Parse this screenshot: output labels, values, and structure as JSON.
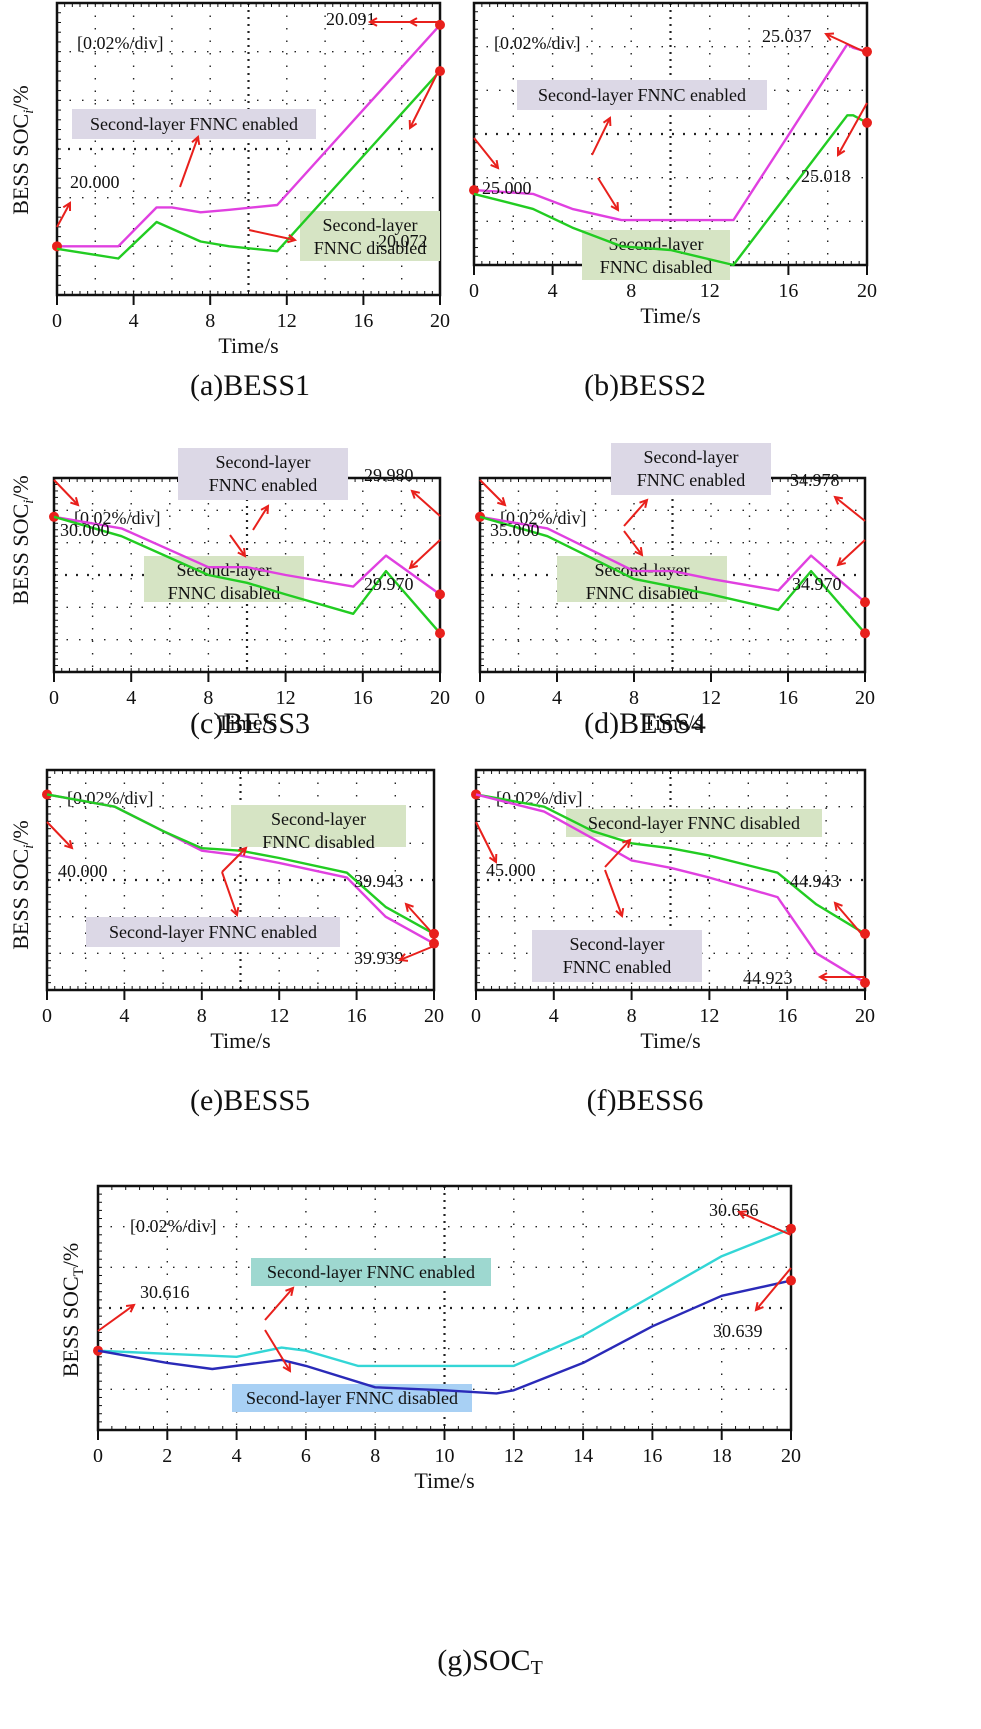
{
  "figure": {
    "colors": {
      "enabled_line": "#e040e0",
      "disabled_line": "#22cc22",
      "total_enabled_line": "#33d6d6",
      "total_disabled_line": "#2a2ab8",
      "enabled_box": "#dcd8e6",
      "disabled_box": "#d6e4c4",
      "total_enabled_box": "#9ed8d0",
      "total_disabled_box": "#a8d0f4",
      "arrow": "#e8201c",
      "marker": "#e8201c"
    }
  },
  "chart_data": [
    {
      "id": "a",
      "type": "line",
      "caption": "(a)BESS1",
      "xlabel": "Time/s",
      "ylabel": "BESS SOC",
      "ylabel_sub": "i",
      "ylabel_suffix": "/%",
      "scale_note": "[0.02%/div]",
      "x_ticks": [
        "0",
        "4",
        "8",
        "12",
        "16",
        "20"
      ],
      "xlim": [
        0,
        20
      ],
      "ylim": [
        19.98,
        20.1
      ],
      "grid": true,
      "series": [
        {
          "name": "Second-layer FNNC enabled",
          "color_key": "enabled_line",
          "x": [
            0,
            3.2,
            5.2,
            6,
            7.5,
            9,
            11.5,
            20
          ],
          "y": [
            20.0,
            20.0,
            20.016,
            20.016,
            20.014,
            20.015,
            20.017,
            20.091
          ]
        },
        {
          "name": "Second-layer FNNC disabled",
          "color_key": "disabled_line",
          "x": [
            0,
            3.2,
            5.2,
            7.5,
            9,
            11.5,
            20
          ],
          "y": [
            19.999,
            19.995,
            20.01,
            20.002,
            20.0,
            19.998,
            20.072
          ]
        }
      ],
      "annotations": [
        {
          "text": "20.000",
          "value": 20.0
        },
        {
          "text": "20.091",
          "value": 20.091
        },
        {
          "text": "20.072",
          "value": 20.072
        }
      ],
      "labels": [
        {
          "text": "Second-layer FNNC enabled",
          "style": "enabled_box"
        },
        {
          "text": "Second-layer|FNNC disabled",
          "style": "disabled_box"
        }
      ]
    },
    {
      "id": "b",
      "type": "line",
      "caption": "(b)BESS2",
      "xlabel": "Time/s",
      "ylabel": "",
      "scale_note": "[0.02%/div]",
      "x_ticks": [
        "0",
        "4",
        "8",
        "12",
        "16",
        "20"
      ],
      "xlim": [
        0,
        20
      ],
      "ylim": [
        24.98,
        25.05
      ],
      "grid": true,
      "series": [
        {
          "name": "Second-layer FNNC enabled",
          "color_key": "enabled_line",
          "x": [
            0,
            3,
            5,
            7.5,
            10,
            13.2,
            19,
            19.3,
            20
          ],
          "y": [
            25.0,
            24.999,
            24.995,
            24.992,
            24.992,
            24.992,
            25.039,
            25.038,
            25.037
          ]
        },
        {
          "name": "Second-layer FNNC disabled",
          "color_key": "disabled_line",
          "x": [
            0,
            3,
            5,
            7.5,
            10,
            13.2,
            19,
            19.3,
            20
          ],
          "y": [
            24.999,
            24.995,
            24.99,
            24.985,
            24.984,
            24.98,
            25.02,
            25.02,
            25.018
          ]
        }
      ],
      "annotations": [
        {
          "text": "25.000",
          "value": 25.0
        },
        {
          "text": "25.037",
          "value": 25.037
        },
        {
          "text": "25.018",
          "value": 25.018
        }
      ],
      "labels": [
        {
          "text": "Second-layer FNNC enabled",
          "style": "enabled_box"
        },
        {
          "text": "Second-layer|FNNC disabled",
          "style": "disabled_box"
        }
      ]
    },
    {
      "id": "c",
      "type": "line",
      "caption": "(c)BESS3",
      "xlabel": "Time/s",
      "ylabel": "BESS SOC",
      "ylabel_sub": "i",
      "ylabel_suffix": "/%",
      "scale_note": "[0.02%/div]",
      "x_ticks": [
        "0",
        "4",
        "8",
        "12",
        "16",
        "20"
      ],
      "xlim": [
        0,
        20
      ],
      "ylim": [
        29.96,
        30.01
      ],
      "grid": true,
      "series": [
        {
          "name": "Second-layer FNNC enabled",
          "color_key": "enabled_line",
          "x": [
            0,
            3.5,
            8,
            10,
            12,
            15.5,
            17.2,
            20
          ],
          "y": [
            30.0,
            29.997,
            29.987,
            29.987,
            29.985,
            29.982,
            29.99,
            29.98
          ]
        },
        {
          "name": "Second-layer FNNC disabled",
          "color_key": "disabled_line",
          "x": [
            0,
            3.5,
            8,
            10,
            12,
            15.5,
            17.2,
            20
          ],
          "y": [
            30.0,
            29.995,
            29.985,
            29.983,
            29.98,
            29.975,
            29.986,
            29.97
          ]
        }
      ],
      "annotations": [
        {
          "text": "30.000",
          "value": 30.0
        },
        {
          "text": "29.980",
          "value": 29.98
        },
        {
          "text": "29.970",
          "value": 29.97
        }
      ],
      "labels": [
        {
          "text": "Second-layer|FNNC enabled",
          "style": "enabled_box"
        },
        {
          "text": "Second-layer|FNNC disabled",
          "style": "disabled_box"
        }
      ]
    },
    {
      "id": "d",
      "type": "line",
      "caption": "(d)BESS4",
      "xlabel": "Time/s",
      "ylabel": "",
      "scale_note": "[0.02%/div]",
      "x_ticks": [
        "0",
        "4",
        "8",
        "12",
        "16",
        "20"
      ],
      "xlim": [
        0,
        20
      ],
      "ylim": [
        34.96,
        35.01
      ],
      "grid": true,
      "series": [
        {
          "name": "Second-layer FNNC enabled",
          "color_key": "enabled_line",
          "x": [
            0,
            3.5,
            8,
            10,
            12,
            15.5,
            17.2,
            20
          ],
          "y": [
            35.0,
            34.997,
            34.986,
            34.986,
            34.984,
            34.981,
            34.99,
            34.978
          ]
        },
        {
          "name": "Second-layer FNNC disabled",
          "color_key": "disabled_line",
          "x": [
            0,
            3.5,
            8,
            10,
            12,
            15.5,
            17.2,
            20
          ],
          "y": [
            35.0,
            34.995,
            34.984,
            34.982,
            34.98,
            34.976,
            34.986,
            34.97
          ]
        }
      ],
      "annotations": [
        {
          "text": "35.000",
          "value": 35.0
        },
        {
          "text": "34.978",
          "value": 34.978
        },
        {
          "text": "34.970",
          "value": 34.97
        }
      ],
      "labels": [
        {
          "text": "Second-layer|FNNC enabled",
          "style": "enabled_box"
        },
        {
          "text": "Second-layer|FNNC disabled",
          "style": "disabled_box"
        }
      ]
    },
    {
      "id": "e",
      "type": "line",
      "caption": "(e)BESS5",
      "xlabel": "Time/s",
      "ylabel": "BESS SOC",
      "ylabel_sub": "i",
      "ylabel_suffix": "/%",
      "scale_note": "[0.02%/div]",
      "x_ticks": [
        "0",
        "4",
        "8",
        "12",
        "16",
        "20"
      ],
      "xlim": [
        0,
        20
      ],
      "ylim": [
        39.92,
        40.01
      ],
      "grid": true,
      "series": [
        {
          "name": "Second-layer FNNC enabled",
          "color_key": "enabled_line",
          "x": [
            0,
            3.5,
            6,
            8,
            10,
            12,
            15.5,
            17.5,
            20
          ],
          "y": [
            40.0,
            39.995,
            39.985,
            39.977,
            39.975,
            39.972,
            39.966,
            39.95,
            39.939
          ]
        },
        {
          "name": "Second-layer FNNC disabled",
          "color_key": "disabled_line",
          "x": [
            0,
            3.5,
            6,
            8,
            10,
            12,
            15.5,
            17.5,
            20
          ],
          "y": [
            40.0,
            39.995,
            39.985,
            39.978,
            39.977,
            39.974,
            39.968,
            39.954,
            39.943
          ]
        }
      ],
      "annotations": [
        {
          "text": "40.000",
          "value": 40.0
        },
        {
          "text": "39.943",
          "value": 39.943
        },
        {
          "text": "39.939",
          "value": 39.939
        }
      ],
      "labels": [
        {
          "text": "Second-layer|FNNC disabled",
          "style": "disabled_box"
        },
        {
          "text": "Second-layer FNNC enabled",
          "style": "enabled_box"
        }
      ]
    },
    {
      "id": "f",
      "type": "line",
      "caption": "(f)BESS6",
      "xlabel": "Time/s",
      "ylabel": "",
      "scale_note": "[0.02%/div]",
      "x_ticks": [
        "0",
        "4",
        "8",
        "12",
        "16",
        "20"
      ],
      "xlim": [
        0,
        20
      ],
      "ylim": [
        44.92,
        45.01
      ],
      "grid": true,
      "series": [
        {
          "name": "Second-layer FNNC disabled",
          "color_key": "disabled_line",
          "x": [
            0,
            3.5,
            6,
            8,
            10,
            12,
            15.5,
            17.5,
            20
          ],
          "y": [
            45.0,
            44.995,
            44.985,
            44.98,
            44.978,
            44.975,
            44.968,
            44.955,
            44.943
          ]
        },
        {
          "name": "Second-layer FNNC enabled",
          "color_key": "enabled_line",
          "x": [
            0,
            3.5,
            6,
            8,
            10,
            12,
            15.5,
            17.5,
            20
          ],
          "y": [
            45.0,
            44.993,
            44.982,
            44.973,
            44.97,
            44.966,
            44.958,
            44.935,
            44.923
          ]
        }
      ],
      "annotations": [
        {
          "text": "45.000",
          "value": 45.0
        },
        {
          "text": "44.943",
          "value": 44.943
        },
        {
          "text": "44.923",
          "value": 44.923
        }
      ],
      "labels": [
        {
          "text": "Second-layer FNNC disabled",
          "style": "disabled_box"
        },
        {
          "text": "Second-layer|FNNC enabled",
          "style": "enabled_box"
        }
      ]
    },
    {
      "id": "g",
      "type": "line",
      "caption": "(g)SOC",
      "caption_sub": "T",
      "xlabel": "Time/s",
      "ylabel": "BESS SOC",
      "ylabel_sub": "T",
      "ylabel_suffix": "/%",
      "scale_note": "[0.02%/div]",
      "x_ticks": [
        "0",
        "2",
        "4",
        "6",
        "8",
        "10",
        "12",
        "14",
        "16",
        "18",
        "20"
      ],
      "xlim": [
        0,
        20
      ],
      "ylim": [
        30.59,
        30.67
      ],
      "grid": true,
      "series": [
        {
          "name": "Second-layer FNNC enabled",
          "color_key": "total_enabled_line",
          "x": [
            0,
            2,
            4,
            5.3,
            6,
            7.5,
            9,
            11,
            12,
            14,
            16,
            18,
            20
          ],
          "y": [
            30.616,
            30.615,
            30.614,
            30.617,
            30.616,
            30.611,
            30.611,
            30.611,
            30.611,
            30.621,
            30.634,
            30.647,
            30.656
          ]
        },
        {
          "name": "Second-layer FNNC disabled",
          "color_key": "total_disabled_line",
          "x": [
            0,
            2,
            3.3,
            5.3,
            6,
            8,
            10,
            11.5,
            12,
            14,
            16,
            18,
            20
          ],
          "y": [
            30.616,
            30.612,
            30.61,
            30.613,
            30.611,
            30.604,
            30.603,
            30.602,
            30.603,
            30.612,
            30.624,
            30.634,
            30.639
          ]
        }
      ],
      "annotations": [
        {
          "text": "30.616",
          "value": 30.616
        },
        {
          "text": "30.656",
          "value": 30.656
        },
        {
          "text": "30.639",
          "value": 30.639
        }
      ],
      "labels": [
        {
          "text": "Second-layer FNNC enabled",
          "style": "total_enabled_box"
        },
        {
          "text": "Second-layer FNNC disabled",
          "style": "total_disabled_box"
        }
      ]
    }
  ]
}
